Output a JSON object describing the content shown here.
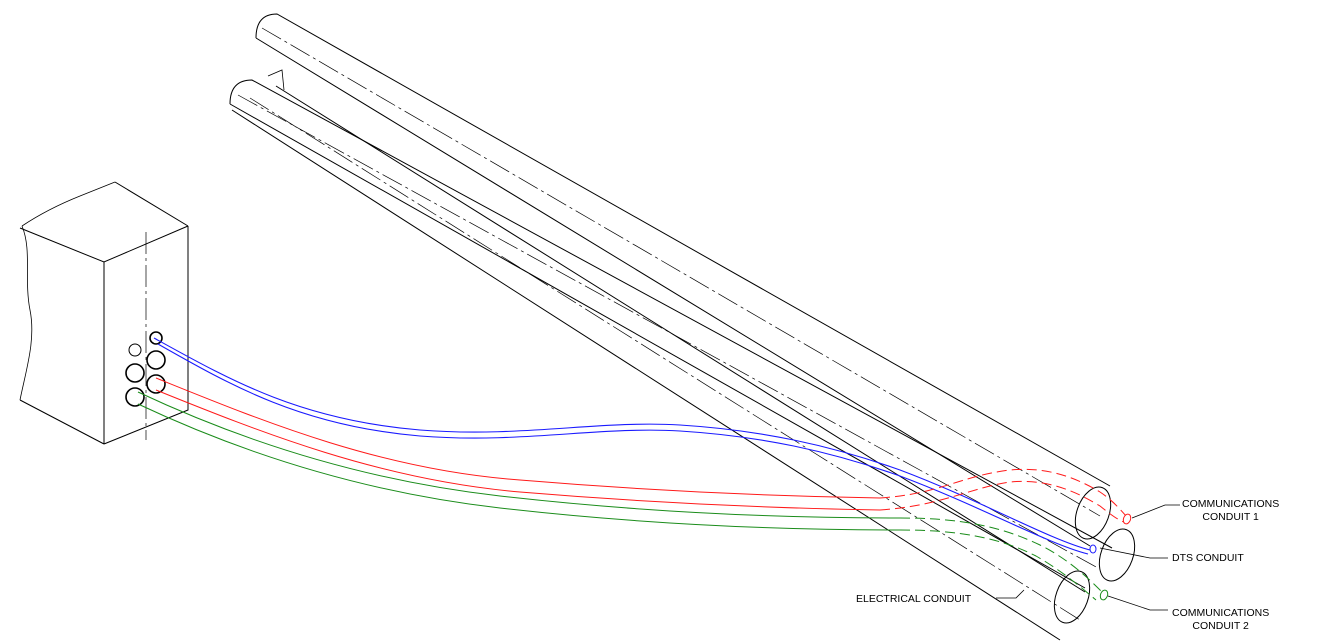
{
  "labels": {
    "comm1_line1": "COMMUNICATIONS",
    "comm1_line2": "CONDUIT 1",
    "dts": "DTS CONDUIT",
    "electrical": "ELECTRICAL CONDUIT",
    "comm2_line1": "COMMUNICATIONS",
    "comm2_line2": "CONDUIT 2"
  },
  "colors": {
    "dts_conduit": "#1a1aff",
    "comm_conduit_1": "#ff1a1a",
    "comm_conduit_2": "#1a8c1a",
    "linework": "#000000"
  }
}
